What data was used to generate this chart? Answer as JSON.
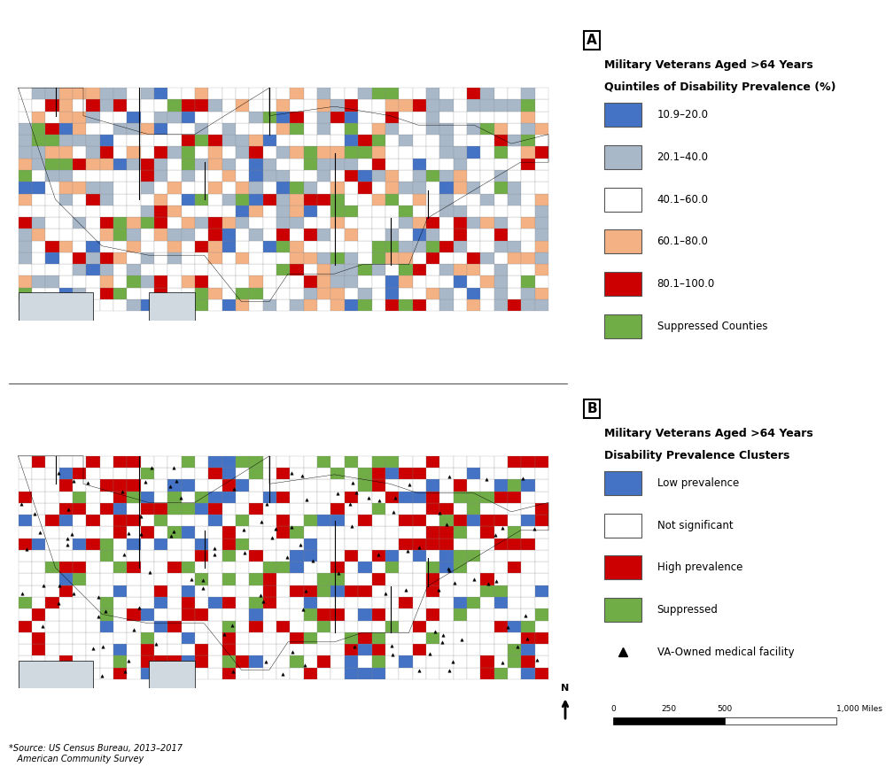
{
  "fig_width": 10.0,
  "fig_height": 8.66,
  "background_color": "#ffffff",
  "map_A_label": "A",
  "map_B_label": "B",
  "legend_A_title_line1": "Military Veterans Aged >64 Years",
  "legend_A_title_line2": "Quintiles of Disability Prevalence (%)",
  "legend_A_items": [
    {
      "label": "10.9–20.0",
      "color": "#4472c4"
    },
    {
      "label": "20.1–40.0",
      "color": "#a9b8c8"
    },
    {
      "label": "40.1–60.0",
      "color": "#ffffff"
    },
    {
      "label": "60.1–80.0",
      "color": "#f4b183"
    },
    {
      "label": "80.1–100.0",
      "color": "#cc0000"
    },
    {
      "label": "Suppressed Counties",
      "color": "#70ad47"
    }
  ],
  "legend_B_title_line1": "Military Veterans Aged >64 Years",
  "legend_B_title_line2": "Disability Prevalence Clusters",
  "legend_B_items": [
    {
      "label": "Low prevalence",
      "color": "#4472c4"
    },
    {
      "label": "Not significant",
      "color": "#ffffff"
    },
    {
      "label": "High prevalence",
      "color": "#cc0000"
    },
    {
      "label": "Suppressed",
      "color": "#70ad47"
    },
    {
      "label": "VA-Owned medical facility",
      "color": "#000000",
      "marker": "triangle"
    }
  ],
  "source_text": "*Source: US Census Bureau, 2013–2017\n   American Community Survey",
  "scale_bar_label": "0     250    500                1,000 Miles",
  "north_arrow": true,
  "map_A_bg": "#e8eef4",
  "map_B_bg": "#ffffff",
  "county_border_color": "#666666",
  "state_border_color": "#000000"
}
